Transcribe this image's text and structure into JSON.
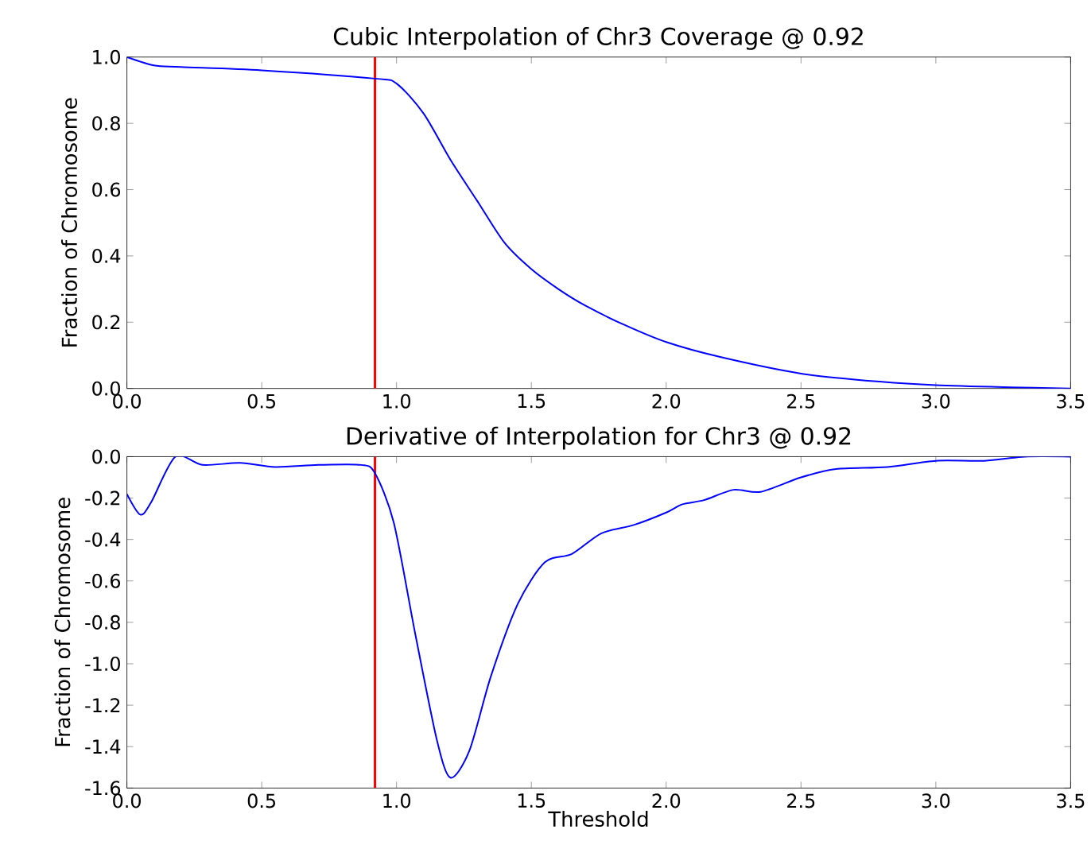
{
  "chart_data": [
    {
      "type": "line",
      "title": "Cubic Interpolation of Chr3 Coverage @ 0.92",
      "ylabel": "Fraction of Chromosome",
      "x": [
        0,
        0.1,
        0.2,
        0.5,
        0.92,
        1.0,
        1.1,
        1.2,
        1.3,
        1.4,
        1.5,
        1.6,
        1.7,
        1.85,
        2.0,
        2.2,
        2.5,
        2.8,
        3.0,
        3.25,
        3.5
      ],
      "values": [
        1.0,
        0.975,
        0.97,
        0.96,
        0.935,
        0.92,
        0.83,
        0.69,
        0.565,
        0.44,
        0.36,
        0.3,
        0.25,
        0.19,
        0.14,
        0.095,
        0.045,
        0.02,
        0.01,
        0.004,
        0.0
      ],
      "color": "#0000ff",
      "xlim": [
        0,
        3.5
      ],
      "ylim": [
        0,
        1.0
      ],
      "xticks": [
        {
          "value": 0,
          "label": "0.0"
        },
        0.5,
        {
          "value": 1,
          "label": "1.0"
        },
        1.5,
        {
          "value": 2,
          "label": "2.0"
        },
        2.5,
        {
          "value": 3,
          "label": "3.0"
        },
        3.5
      ],
      "yticks": [
        {
          "value": 0,
          "label": "0.0"
        },
        0.2,
        0.4,
        0.6,
        0.8,
        {
          "value": 1,
          "label": "1.0"
        }
      ],
      "ref_lines": [
        {
          "axis": "x",
          "value": 0.92,
          "color": "#ff0000"
        }
      ]
    },
    {
      "type": "line",
      "title": "Derivative of Interpolation for Chr3 @ 0.92",
      "xlabel": "Threshold",
      "ylabel": "Fraction of Chromosome",
      "x": [
        0,
        0.05,
        0.09,
        0.18,
        0.28,
        0.42,
        0.55,
        0.71,
        0.87,
        0.92,
        0.99,
        1.07,
        1.15,
        1.2,
        1.27,
        1.35,
        1.45,
        1.55,
        1.65,
        1.76,
        1.88,
        2.0,
        2.06,
        2.14,
        2.25,
        2.35,
        2.5,
        2.63,
        2.82,
        3.0,
        3.18,
        3.33,
        3.5
      ],
      "values": [
        -0.18,
        -0.28,
        -0.22,
        0.0,
        -0.04,
        -0.03,
        -0.05,
        -0.04,
        -0.04,
        -0.08,
        -0.32,
        -0.86,
        -1.37,
        -1.55,
        -1.42,
        -1.06,
        -0.71,
        -0.51,
        -0.47,
        -0.37,
        -0.33,
        -0.27,
        -0.23,
        -0.21,
        -0.16,
        -0.17,
        -0.1,
        -0.06,
        -0.05,
        -0.02,
        -0.02,
        0.0,
        0.0
      ],
      "color": "#0000ff",
      "xlim": [
        0,
        3.5
      ],
      "ylim": [
        -1.6,
        0.0
      ],
      "xticks": [
        {
          "value": 0,
          "label": "0.0"
        },
        0.5,
        {
          "value": 1,
          "label": "1.0"
        },
        1.5,
        {
          "value": 2,
          "label": "2.0"
        },
        2.5,
        {
          "value": 3,
          "label": "3.0"
        },
        3.5
      ],
      "yticks": [
        -1.6,
        -1.4,
        -1.2,
        {
          "value": -1.0,
          "label": "-1.0"
        },
        -0.8,
        -0.6,
        -0.4,
        -0.2,
        {
          "value": 0,
          "label": "0.0"
        }
      ],
      "ref_lines": [
        {
          "axis": "x",
          "value": 0.92,
          "color": "#ff0000"
        }
      ]
    }
  ]
}
